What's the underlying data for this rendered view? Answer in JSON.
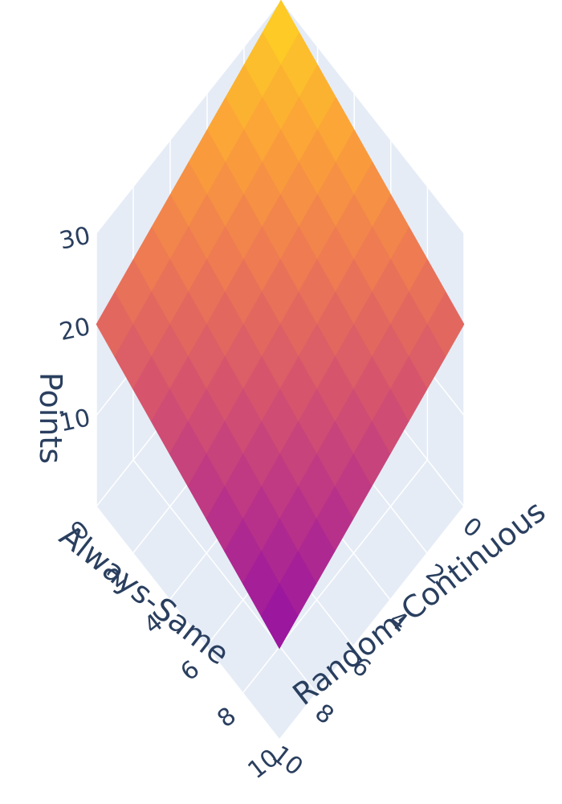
{
  "chart_data": {
    "type": "surface",
    "title": "",
    "x_axis": {
      "title": "Always-Same",
      "range": [
        0,
        10
      ],
      "ticks": [
        "0",
        "2",
        "4",
        "6",
        "8",
        "10"
      ]
    },
    "y_axis": {
      "title": "Random-Continuous",
      "range": [
        0,
        10
      ],
      "ticks": [
        "0",
        "2",
        "4",
        "6",
        "8",
        "10"
      ]
    },
    "z_axis": {
      "title": "Points",
      "range": [
        0,
        30
      ],
      "ticks": [
        "10",
        "20",
        "30"
      ]
    },
    "x": [
      0,
      1,
      2,
      3,
      4,
      5,
      6,
      7,
      8,
      9,
      10
    ],
    "y": [
      0,
      1,
      2,
      3,
      4,
      5,
      6,
      7,
      8,
      9,
      10
    ],
    "z_corners": {
      "x0_y0": 30,
      "x10_y0": 20,
      "x0_y10": 20,
      "x10_y10": 10
    },
    "colorscale": [
      "#0d0887",
      "#46039f",
      "#7201a8",
      "#9c179e",
      "#bd3786",
      "#d8576b",
      "#ed7953",
      "#fb9f3a",
      "#fdca26",
      "#f0f921"
    ],
    "grid": true,
    "legend": "none"
  }
}
